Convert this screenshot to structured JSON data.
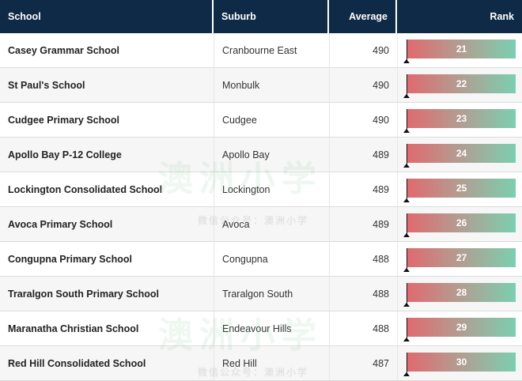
{
  "table": {
    "headers": {
      "school": "School",
      "suburb": "Suburb",
      "average": "Average",
      "rank": "Rank"
    },
    "rows": [
      {
        "school": "Casey Grammar School",
        "suburb": "Cranbourne East",
        "average": "490",
        "rank": "21"
      },
      {
        "school": "St Paul's School",
        "suburb": "Monbulk",
        "average": "490",
        "rank": "22"
      },
      {
        "school": "Cudgee Primary School",
        "suburb": "Cudgee",
        "average": "490",
        "rank": "23"
      },
      {
        "school": "Apollo Bay P-12 College",
        "suburb": "Apollo Bay",
        "average": "489",
        "rank": "24"
      },
      {
        "school": "Lockington Consolidated School",
        "suburb": "Lockington",
        "average": "489",
        "rank": "25"
      },
      {
        "school": "Avoca Primary School",
        "suburb": "Avoca",
        "average": "489",
        "rank": "26"
      },
      {
        "school": "Congupna Primary School",
        "suburb": "Congupna",
        "average": "488",
        "rank": "27"
      },
      {
        "school": "Traralgon South Primary School",
        "suburb": "Traralgon South",
        "average": "488",
        "rank": "28"
      },
      {
        "school": "Maranatha Christian School",
        "suburb": "Endeavour Hills",
        "average": "488",
        "rank": "29"
      },
      {
        "school": "Red Hill Consolidated School",
        "suburb": "Red Hill",
        "average": "487",
        "rank": "30"
      }
    ]
  },
  "watermark": {
    "logo_text": "澳洲小学",
    "sub_text": "微信公众号：澳洲小学"
  },
  "colors": {
    "header_bg": "#0f2a47",
    "bar_start": "#e06a6f",
    "bar_end": "#7ccfb0"
  }
}
